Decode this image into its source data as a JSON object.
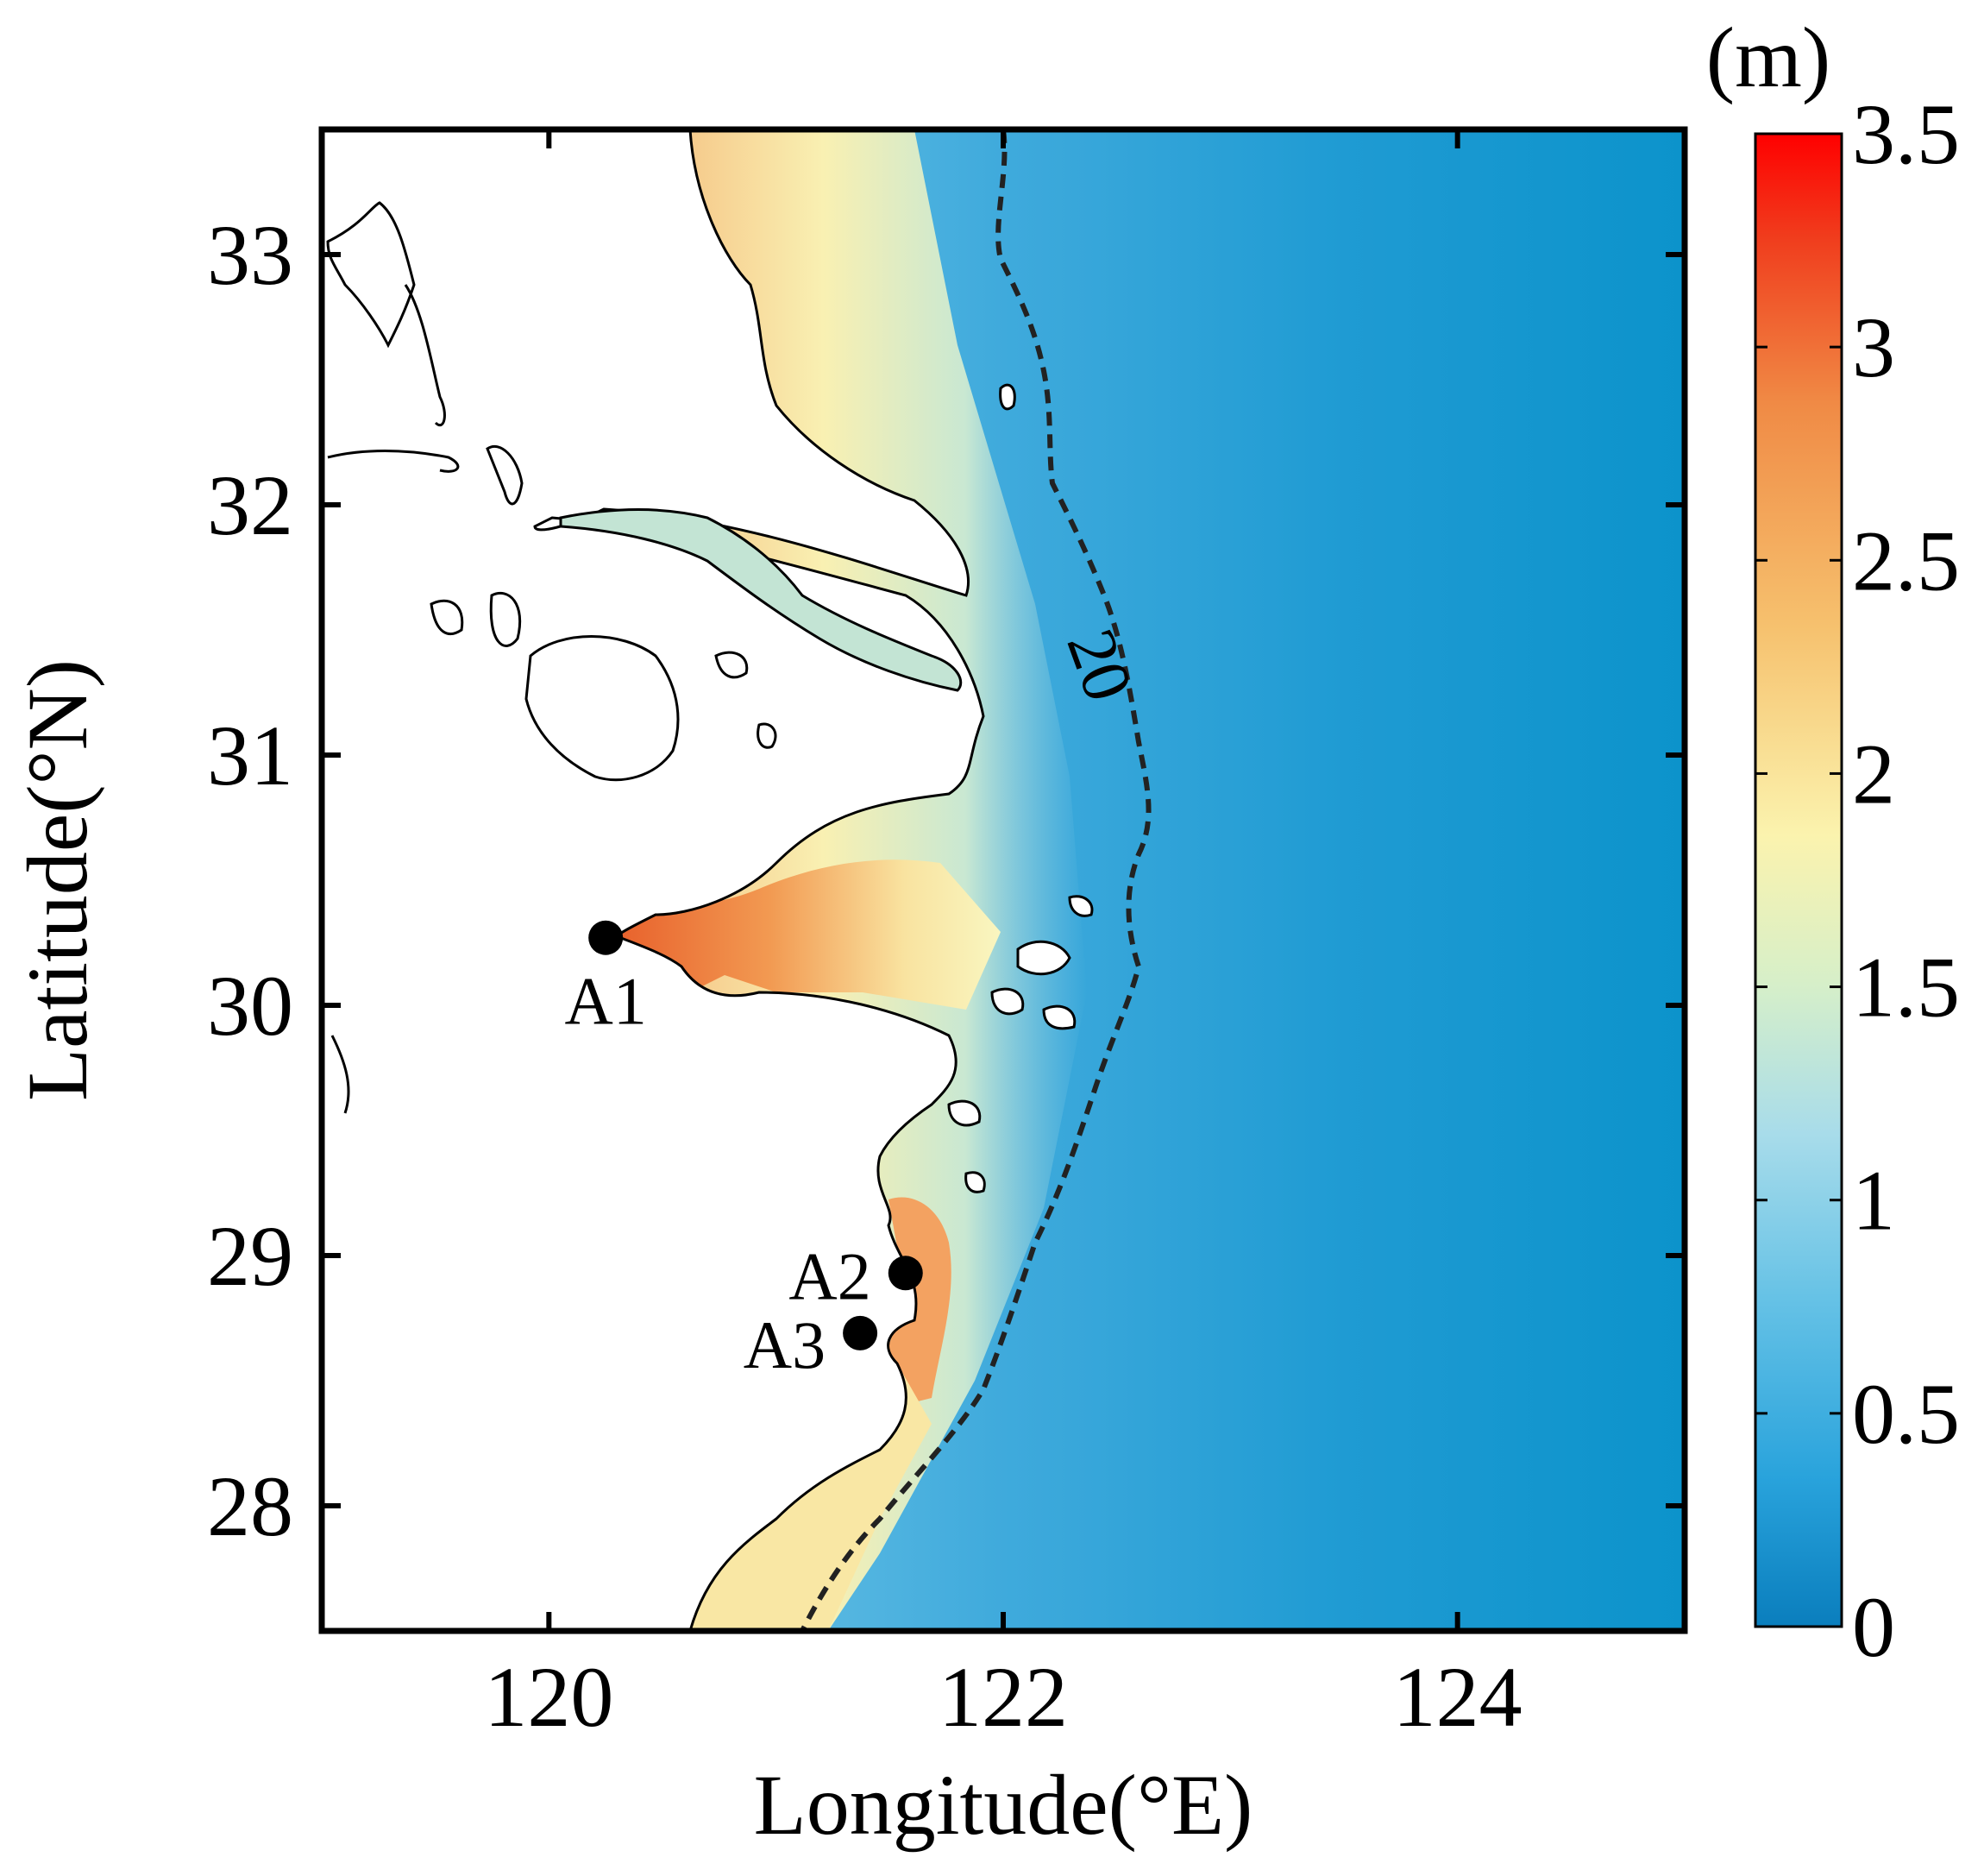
{
  "chart_data": {
    "type": "heatmap",
    "map_extent": {
      "lon": [
        119,
        125
      ],
      "lat": [
        27.5,
        33.5
      ]
    },
    "xlabel": "Longitude(°E)",
    "ylabel": "Latitude(°N)",
    "x_ticks": [
      "120",
      "122",
      "124"
    ],
    "x_tick_values": [
      120,
      122,
      124
    ],
    "y_ticks": [
      "28",
      "29",
      "30",
      "31",
      "32",
      "33"
    ],
    "y_tick_values": [
      28,
      29,
      30,
      31,
      32,
      33
    ],
    "colorbar": {
      "unit": "(m)",
      "range": [
        0,
        3.5
      ],
      "tick_labels": [
        "0",
        "0.5",
        "1",
        "1.5",
        "2",
        "2.5",
        "3",
        "3.5"
      ],
      "tick_values": [
        0,
        0.5,
        1,
        1.5,
        2,
        2.5,
        3,
        3.5
      ],
      "colors": [
        "#0a7ebd",
        "#29a3dc",
        "#66c2e6",
        "#a8dcea",
        "#d6efc9",
        "#fbf3ae",
        "#f6c16e",
        "#f08a45",
        "#f03d1d",
        "#ff0000"
      ]
    },
    "contour": {
      "label": "20",
      "value": 20,
      "style": "dashed"
    },
    "stations": [
      {
        "name": "A1",
        "lon": 120.25,
        "lat": 30.27
      },
      {
        "name": "A2",
        "lon": 121.57,
        "lat": 28.93
      },
      {
        "name": "A3",
        "lon": 121.37,
        "lat": 28.69
      }
    ],
    "grid": false
  }
}
